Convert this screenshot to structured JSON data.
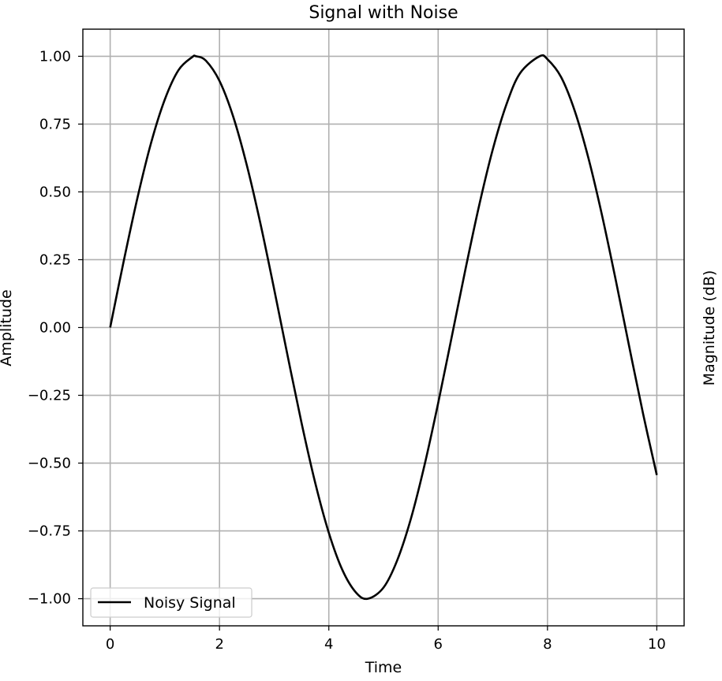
{
  "chart_data": {
    "type": "line",
    "title": "Signal with Noise",
    "xlabel": "Time",
    "ylabel": "Amplitude",
    "ylabel_right": "Magnitude (dB)",
    "xlim": [
      -0.5,
      10.5
    ],
    "ylim": [
      -1.1,
      1.1
    ],
    "xticks": [
      0,
      2,
      4,
      6,
      8,
      10
    ],
    "xtick_labels": [
      "0",
      "2",
      "4",
      "6",
      "8",
      "10"
    ],
    "yticks": [
      1.0,
      0.75,
      0.5,
      0.25,
      0.0,
      -0.25,
      -0.5,
      -0.75,
      -1.0
    ],
    "ytick_labels": [
      "1.00",
      "0.75",
      "0.50",
      "0.25",
      "0.00",
      "−0.25",
      "−0.50",
      "−0.75",
      "−1.00"
    ],
    "grid": true,
    "legend_position": "lower-left",
    "series": [
      {
        "name": "Noisy Signal",
        "color": "#000000",
        "x": [
          0,
          0.25,
          0.5,
          0.75,
          1,
          1.25,
          1.5,
          1.5708,
          1.75,
          2,
          2.25,
          2.5,
          2.75,
          3,
          3.25,
          3.5,
          3.75,
          4,
          4.25,
          4.5,
          4.7124,
          5,
          5.25,
          5.5,
          5.75,
          6,
          6.25,
          6.5,
          6.75,
          7,
          7.25,
          7.5,
          7.854,
          8,
          8.25,
          8.5,
          8.75,
          9,
          9.25,
          9.5,
          9.75,
          10
        ],
        "y": [
          0,
          0.247,
          0.479,
          0.682,
          0.841,
          0.949,
          0.997,
          1.0,
          0.984,
          0.909,
          0.778,
          0.598,
          0.382,
          0.141,
          -0.108,
          -0.351,
          -0.572,
          -0.757,
          -0.895,
          -0.978,
          -1.0,
          -0.959,
          -0.859,
          -0.706,
          -0.508,
          -0.279,
          -0.033,
          0.215,
          0.45,
          0.657,
          0.823,
          0.938,
          1.0,
          0.989,
          0.923,
          0.798,
          0.624,
          0.412,
          0.174,
          -0.075,
          -0.319,
          -0.544
        ]
      }
    ]
  }
}
